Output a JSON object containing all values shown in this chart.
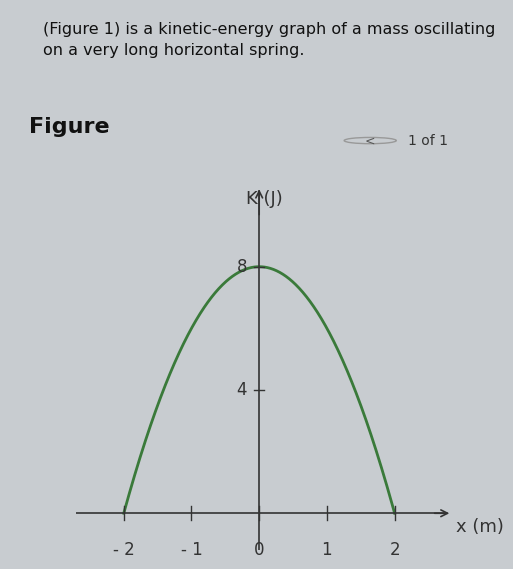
{
  "title_text": "(Figure 1) is a kinetic-energy graph of a mass oscillating\non a very long horizontal spring.",
  "figure_label": "Figure",
  "page_label": "1 of 1",
  "ylabel": "K (J)",
  "xlabel": "x (m)",
  "x_ticks": [
    -2,
    -1,
    0,
    1,
    2
  ],
  "x_tick_labels": [
    "- 2",
    "- 1",
    "0",
    "1",
    "2"
  ],
  "y_ticks": [
    4,
    8
  ],
  "y_tick_labels": [
    "4",
    "8"
  ],
  "xlim": [
    -2.7,
    2.9
  ],
  "ylim": [
    -1.2,
    10.8
  ],
  "curve_color": "#3a7a3a",
  "curve_linewidth": 2.0,
  "parabola_a": -2.0,
  "parabola_peak_y": 8,
  "parabola_roots": [
    -2,
    2
  ],
  "axis_color": "#333333",
  "fig_background": "#c8ccd0",
  "header_bg": "#b8c4cc",
  "plot_bg": "#e8eaec",
  "separator_color": "#999999",
  "title_fontsize": 11.5,
  "label_fontsize": 13,
  "tick_fontsize": 12,
  "figure_label_fontsize": 16
}
